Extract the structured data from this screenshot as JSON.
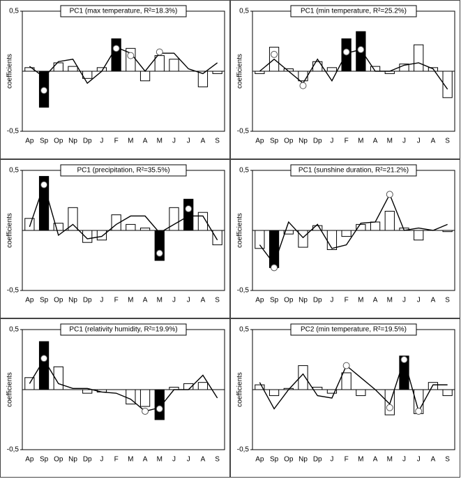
{
  "chart_data": [
    {
      "type": "bar",
      "title": "PC1 (max temperature, R²=18.3%)",
      "ylabel": "coefficients",
      "categories": [
        "Ap",
        "Sp",
        "Op",
        "Np",
        "Dp",
        "J",
        "F",
        "M",
        "A",
        "M",
        "J",
        "J",
        "A",
        "S"
      ],
      "values": [
        0.03,
        -0.3,
        0.07,
        0.04,
        -0.06,
        0.03,
        0.27,
        0.19,
        -0.08,
        0.13,
        0.1,
        0,
        -0.13,
        -0.02
      ],
      "bar_colors": [
        "#fff",
        "#000",
        "#fff",
        "#fff",
        "#fff",
        "#fff",
        "#000",
        "#fff",
        "#fff",
        "#fff",
        "#fff",
        "#fff",
        "#fff",
        "#fff"
      ],
      "line": [
        0.04,
        -0.05,
        0.08,
        0.1,
        -0.1,
        0,
        0.2,
        0.15,
        0,
        0.15,
        0.15,
        0.02,
        -0.02,
        0.07
      ],
      "points": [
        null,
        -0.16,
        null,
        null,
        null,
        null,
        0.19,
        0.13,
        null,
        0.16,
        null,
        null,
        null,
        null
      ],
      "ylim": [
        -0.5,
        0.5
      ],
      "yticks": [
        {
          "value": 0.5,
          "label": "0,5"
        },
        {
          "value": -0.5,
          "label": "-0,5"
        }
      ]
    },
    {
      "type": "bar",
      "title": "PC1 (min temperature, R²=25.2%)",
      "ylabel": "coefficients",
      "categories": [
        "Ap",
        "Sp",
        "Op",
        "Np",
        "Dp",
        "J",
        "F",
        "M",
        "A",
        "M",
        "J",
        "J",
        "A",
        "S"
      ],
      "values": [
        -0.02,
        0.2,
        0.02,
        -0.08,
        0.08,
        0.03,
        0.27,
        0.33,
        0.04,
        -0.02,
        0.06,
        0.22,
        0.03,
        -0.22
      ],
      "bar_colors": [
        "#fff",
        "#fff",
        "#fff",
        "#fff",
        "#fff",
        "#fff",
        "#000",
        "#000",
        "#fff",
        "#fff",
        "#fff",
        "#fff",
        "#fff",
        "#fff"
      ],
      "line": [
        0,
        0.1,
        0,
        -0.1,
        0.1,
        -0.08,
        0.15,
        0.18,
        0,
        0,
        0.05,
        0.07,
        0.02,
        -0.15
      ],
      "points": [
        null,
        0.14,
        null,
        -0.12,
        null,
        null,
        0.16,
        0.18,
        null,
        null,
        null,
        null,
        null,
        null
      ],
      "ylim": [
        -0.5,
        0.5
      ],
      "yticks": [
        {
          "value": 0.5,
          "label": "0,5"
        },
        {
          "value": -0.5,
          "label": "-0,5"
        }
      ]
    },
    {
      "type": "bar",
      "title": "PC1 (precipitation, R²=35.5%)",
      "ylabel": "coefficients",
      "categories": [
        "Ap",
        "Sp",
        "Op",
        "Np",
        "Dp",
        "J",
        "F",
        "M",
        "A",
        "M",
        "J",
        "J",
        "A",
        "S"
      ],
      "values": [
        0.1,
        0.45,
        0.06,
        0.19,
        -0.1,
        -0.08,
        0.13,
        0.05,
        0.02,
        -0.25,
        0.19,
        0.26,
        0.15,
        -0.12
      ],
      "bar_colors": [
        "#fff",
        "#000",
        "#fff",
        "#fff",
        "#fff",
        "#fff",
        "#fff",
        "#fff",
        "#fff",
        "#000",
        "#fff",
        "#000",
        "#fff",
        "#fff"
      ],
      "line": [
        0.03,
        0.38,
        -0.04,
        0.05,
        -0.07,
        -0.05,
        0.05,
        0.12,
        0.12,
        -0.02,
        0.05,
        0.12,
        0.12,
        -0.08
      ],
      "points": [
        null,
        0.38,
        null,
        null,
        null,
        null,
        null,
        null,
        null,
        -0.19,
        null,
        0.18,
        null,
        null
      ],
      "ylim": [
        -0.5,
        0.5
      ],
      "yticks": [
        {
          "value": 0.5,
          "label": "0,5"
        },
        {
          "value": -0.5,
          "label": "-0,5"
        }
      ]
    },
    {
      "type": "bar",
      "title": "PC1 (sunshine duration, R²=21.2%)",
      "ylabel": "coefficients",
      "categories": [
        "Ap",
        "Sp",
        "Op",
        "Np",
        "Dp",
        "J",
        "F",
        "M",
        "A",
        "M",
        "J",
        "J",
        "A",
        "S"
      ],
      "values": [
        -0.15,
        -0.31,
        -0.03,
        -0.14,
        0.04,
        -0.16,
        -0.05,
        0.05,
        0.07,
        0.16,
        0.02,
        -0.08,
        0,
        -0.01
      ],
      "bar_colors": [
        "#fff",
        "#000",
        "#fff",
        "#fff",
        "#fff",
        "#fff",
        "#fff",
        "#fff",
        "#fff",
        "#fff",
        "#fff",
        "#fff",
        "#fff",
        "#fff"
      ],
      "line": [
        -0.12,
        -0.28,
        0.07,
        -0.06,
        0.05,
        -0.15,
        -0.12,
        0.06,
        0.07,
        0.3,
        0,
        0.02,
        0,
        0.05
      ],
      "points": [
        null,
        -0.31,
        null,
        null,
        null,
        null,
        null,
        null,
        null,
        0.3,
        null,
        null,
        null,
        null
      ],
      "ylim": [
        -0.5,
        0.5
      ],
      "yticks": [
        {
          "value": 0.5,
          "label": "0,5"
        },
        {
          "value": -0.5,
          "label": "-0,5"
        }
      ]
    },
    {
      "type": "bar",
      "title": "PC1 (relativity humidity, R²=19.9%)",
      "ylabel": "coefficients",
      "categories": [
        "Ap",
        "Sp",
        "Op",
        "Np",
        "Dp",
        "J",
        "F",
        "M",
        "A",
        "M",
        "J",
        "J",
        "A",
        "S"
      ],
      "values": [
        0.1,
        0.4,
        0.19,
        0,
        -0.03,
        -0.02,
        0,
        -0.12,
        -0.14,
        -0.25,
        0.02,
        0.05,
        0.06,
        0
      ],
      "bar_colors": [
        "#fff",
        "#000",
        "#fff",
        "#fff",
        "#fff",
        "#fff",
        "#fff",
        "#fff",
        "#fff",
        "#000",
        "#fff",
        "#fff",
        "#fff",
        "#fff"
      ],
      "line": [
        0.05,
        0.25,
        0.05,
        0.01,
        0.01,
        -0.02,
        -0.03,
        -0.08,
        -0.18,
        -0.15,
        0,
        0,
        0.12,
        -0.07
      ],
      "points": [
        null,
        0.26,
        null,
        null,
        null,
        null,
        null,
        null,
        -0.18,
        -0.16,
        null,
        null,
        null,
        null
      ],
      "ylim": [
        -0.5,
        0.5
      ],
      "yticks": [
        {
          "value": 0.5,
          "label": "0,5"
        },
        {
          "value": -0.5,
          "label": "-0,5"
        }
      ]
    },
    {
      "type": "bar",
      "title": "PC2 (min temperature, R²=19.5%)",
      "ylabel": "coefficients",
      "categories": [
        "Ap",
        "Sp",
        "Op",
        "Np",
        "Dp",
        "J",
        "F",
        "M",
        "A",
        "M",
        "J",
        "J",
        "A",
        "S"
      ],
      "values": [
        0.04,
        -0.05,
        0.01,
        0.2,
        0.02,
        -0.03,
        0.14,
        -0.05,
        0,
        -0.21,
        0.28,
        -0.2,
        0.06,
        -0.05
      ],
      "bar_colors": [
        "#fff",
        "#fff",
        "#fff",
        "#fff",
        "#fff",
        "#fff",
        "#fff",
        "#fff",
        "#fff",
        "#fff",
        "#000",
        "#fff",
        "#fff",
        "#fff"
      ],
      "line": [
        0.06,
        -0.16,
        0,
        0.13,
        -0.05,
        -0.07,
        0.2,
        0.1,
        0,
        -0.12,
        0.25,
        -0.18,
        0.04,
        0.04
      ],
      "points": [
        null,
        null,
        null,
        null,
        null,
        null,
        0.2,
        null,
        null,
        -0.15,
        0.25,
        -0.18,
        null,
        null
      ],
      "ylim": [
        -0.5,
        0.5
      ],
      "yticks": [
        {
          "value": 0.5,
          "label": "0,5"
        },
        {
          "value": -0.5,
          "label": "-0,5"
        }
      ]
    }
  ]
}
